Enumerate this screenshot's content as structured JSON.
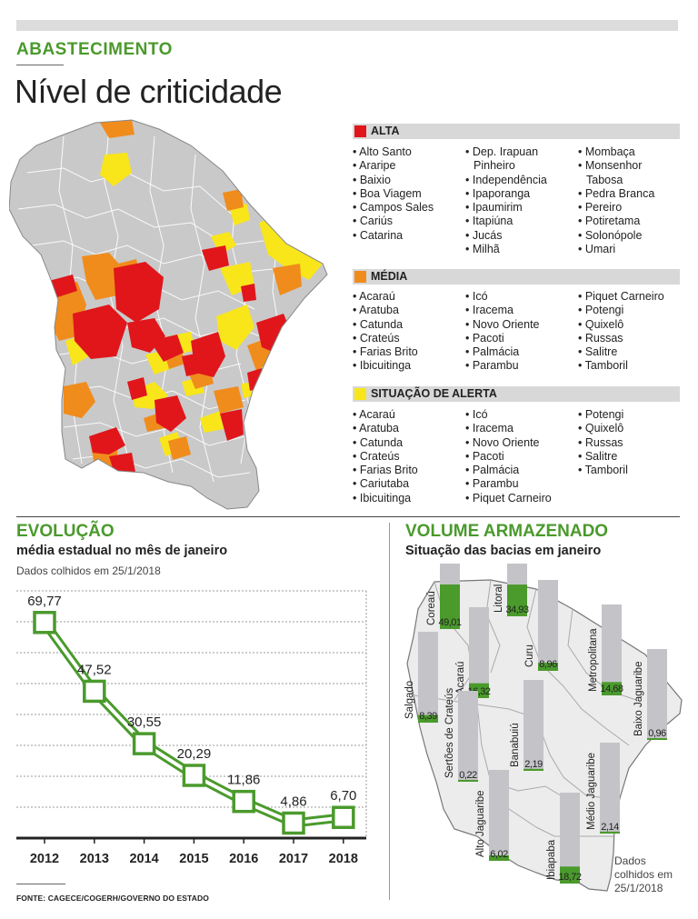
{
  "header": {
    "kicker": "ABASTECIMENTO",
    "title": "Nível de criticidade"
  },
  "colors": {
    "alta": "#e0161b",
    "media": "#f08c1c",
    "alerta": "#f8e61a",
    "normal": "#c9c9c9",
    "brand_green": "#4a9a2c"
  },
  "legend": {
    "alta": {
      "label": "ALTA",
      "col1": [
        "• Alto Santo",
        "• Araripe",
        "• Baixio",
        "• Boa Viagem",
        "• Campos Sales",
        "• Cariús",
        "• Catarina"
      ],
      "col2": [
        "• Dep. Irapuan",
        "Pinheiro",
        "• Independência",
        "• Ipaporanga",
        "• Ipaumirim",
        "• Itapiúna",
        "• Jucás",
        "• Milhã"
      ],
      "col3": [
        "• Mombaça",
        "• Monsenhor",
        "Tabosa",
        "• Pedra Branca",
        "• Pereiro",
        "• Potiretama",
        "• Solonópole",
        "• Umari"
      ]
    },
    "media": {
      "label": "MÉDIA",
      "col1": [
        "• Acaraú",
        "• Aratuba",
        "• Catunda",
        "• Crateús",
        "• Farias Brito",
        "• Ibicuitinga"
      ],
      "col2": [
        "• Icó",
        "• Iracema",
        "• Novo Oriente",
        "• Pacoti",
        "• Palmácia",
        "• Parambu"
      ],
      "col3": [
        "• Piquet Carneiro",
        "• Potengi",
        "• Quixelô",
        "• Russas",
        "• Salitre",
        "• Tamboril"
      ]
    },
    "alerta": {
      "label": "SITUAÇÃO DE ALERTA",
      "col1": [
        "• Acaraú",
        "• Aratuba",
        "• Catunda",
        "• Crateús",
        "• Farias Brito",
        "• Cariutaba",
        "• Ibicuitinga"
      ],
      "col2": [
        "• Icó",
        "• Iracema",
        "• Novo Oriente",
        "• Pacoti",
        "• Palmácia",
        "• Parambu",
        "• Piquet Carneiro"
      ],
      "col3": [
        "• Potengi",
        "• Quixelô",
        "• Russas",
        "• Salitre",
        "• Tamboril"
      ]
    }
  },
  "evolucao": {
    "heading": "EVOLUÇÃO",
    "subtitle": "média estadual no mês de janeiro",
    "note": "Dados colhidos em 25/1/2018"
  },
  "volume": {
    "heading": "VOLUME ARMAZENADO",
    "subtitle": "Situação das bacias em janeiro",
    "note": [
      "Dados",
      "colhidos em",
      "25/1/2018"
    ]
  },
  "footer": "FONTE: CAGECE/COGERH/GOVERNO DO ESTADO",
  "chart_data": [
    {
      "type": "line",
      "x": [
        "2012",
        "2013",
        "2014",
        "2015",
        "2016",
        "2017",
        "2018"
      ],
      "values": [
        69.77,
        47.52,
        30.55,
        20.29,
        11.86,
        4.86,
        6.7
      ],
      "labels": [
        "69,77",
        "47,52",
        "30,55",
        "20,29",
        "11,86",
        "4,86",
        "6,70"
      ],
      "ylim": [
        0,
        80
      ],
      "grid": true
    },
    {
      "type": "bar",
      "categories": [
        "Coreaú",
        "Litoral",
        "Acaraú",
        "Curu",
        "Metropolitana",
        "Salgado",
        "Baixo Jaguaribe",
        "Sertões de Crateús",
        "Banabuiú",
        "Médio Jaguaribe",
        "Alto Jaguaribe",
        "Ibiapaba"
      ],
      "values": [
        49.01,
        34.93,
        16.32,
        8.96,
        14.68,
        8.39,
        0.96,
        0.22,
        2.19,
        2.14,
        6.02,
        18.72
      ],
      "labels": [
        "49,01",
        "34,93",
        "16,32",
        "8,96",
        "14,68",
        "8,39",
        "0,96",
        "0,22",
        "2,19",
        "2,14",
        "6,02",
        "18,72"
      ],
      "ylim": [
        0,
        100
      ]
    }
  ]
}
